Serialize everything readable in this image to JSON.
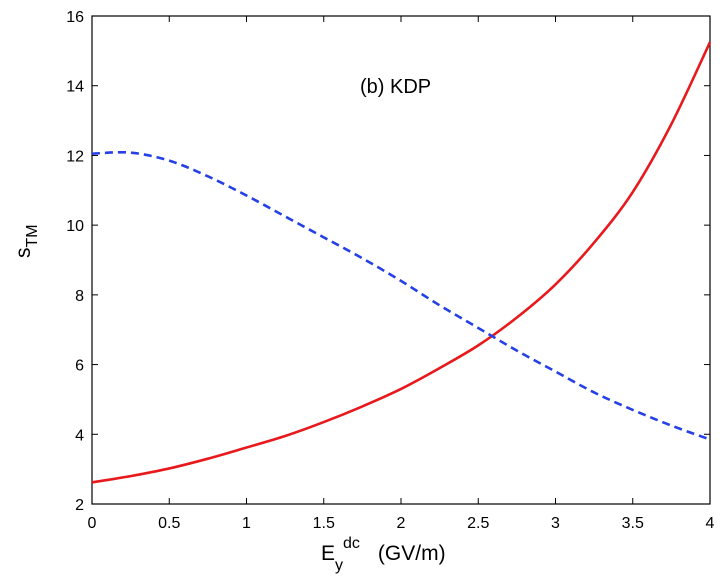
{
  "chart_data": {
    "type": "line",
    "title": "",
    "annotation": "(b)  KDP",
    "xlabel": {
      "main": "E",
      "sub": "y",
      "sup": "dc",
      "unit": "(GV/m)"
    },
    "ylabel": {
      "main": "s",
      "sub": "TM"
    },
    "xlim": [
      0,
      4
    ],
    "ylim": [
      2,
      16
    ],
    "xticks": [
      0,
      0.5,
      1,
      1.5,
      2,
      2.5,
      3,
      3.5,
      4
    ],
    "xtick_labels": [
      "0",
      "0.5",
      "1",
      "1.5",
      "2",
      "2.5",
      "3",
      "3.5",
      "4"
    ],
    "yticks": [
      2,
      4,
      6,
      8,
      10,
      12,
      14,
      16
    ],
    "ytick_labels": [
      "2",
      "4",
      "6",
      "8",
      "10",
      "12",
      "14",
      "16"
    ],
    "grid": false,
    "series": [
      {
        "name": "solid red",
        "color": "#e8191c",
        "dash": "solid",
        "x": [
          0,
          0.25,
          0.5,
          0.75,
          1,
          1.25,
          1.5,
          1.75,
          2,
          2.25,
          2.5,
          2.75,
          3,
          3.25,
          3.5,
          3.75,
          4
        ],
        "y": [
          2.62,
          2.8,
          3.02,
          3.3,
          3.62,
          3.95,
          4.35,
          4.8,
          5.3,
          5.9,
          6.55,
          7.35,
          8.3,
          9.5,
          10.95,
          12.9,
          15.25
        ]
      },
      {
        "name": "dashed blue",
        "color": "#2541e6",
        "dash": "dashed",
        "x": [
          0,
          0.25,
          0.5,
          0.75,
          1,
          1.25,
          1.5,
          1.75,
          2,
          2.25,
          2.5,
          2.75,
          3,
          3.25,
          3.5,
          3.75,
          4
        ],
        "y": [
          12.05,
          12.08,
          11.85,
          11.4,
          10.85,
          10.25,
          9.65,
          9.05,
          8.4,
          7.7,
          7.05,
          6.4,
          5.8,
          5.2,
          4.7,
          4.25,
          3.85
        ]
      }
    ]
  }
}
